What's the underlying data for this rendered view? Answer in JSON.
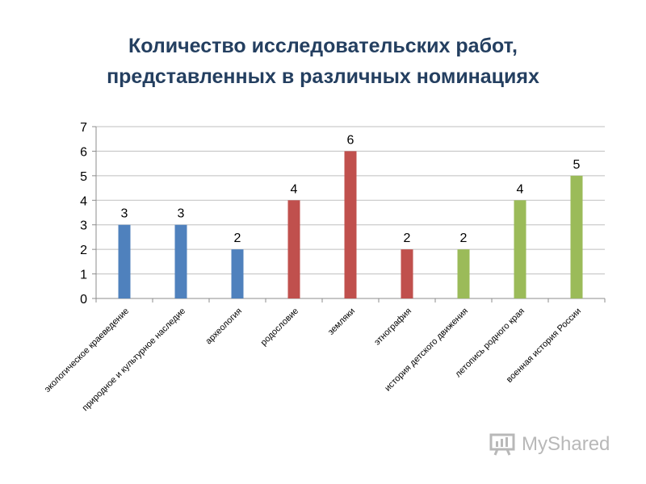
{
  "title": {
    "line1": "Количество исследовательских работ,",
    "line2": "представленных в различных номинациях"
  },
  "watermark": {
    "text": "MyShared",
    "icon": "myshared-logo-icon"
  },
  "chart_data": {
    "type": "bar",
    "categories": [
      "экологическое краеведение",
      "природное и культурное наследие",
      "археология",
      "родословие",
      "земляки",
      "этнография",
      "история детского движения",
      "летопись родного края",
      "военная история России"
    ],
    "values": [
      3,
      3,
      2,
      4,
      6,
      2,
      2,
      4,
      5
    ],
    "data_labels": [
      "3",
      "3",
      "2",
      "4",
      "6",
      "2",
      "2",
      "4",
      "5"
    ],
    "bar_colors": [
      "#4f81bd",
      "#4f81bd",
      "#4f81bd",
      "#c0504d",
      "#c0504d",
      "#c0504d",
      "#9bbb59",
      "#9bbb59",
      "#9bbb59"
    ],
    "ylim": [
      0,
      7
    ],
    "yticks": [
      0,
      1,
      2,
      3,
      4,
      5,
      6,
      7
    ],
    "grid": true,
    "legend": "none"
  }
}
